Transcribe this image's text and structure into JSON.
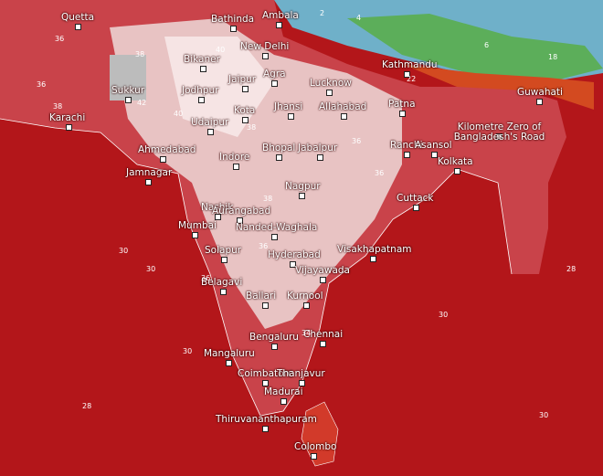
{
  "cities": [
    "Quetta",
    "Bathinda",
    "Ambala",
    "Sukkur",
    "Bikaner",
    "New Delhi",
    "Agra",
    "Lucknow",
    "Kathmandu",
    "Guwahati",
    "Jodhpur",
    "Jaipur",
    "Karachi",
    "Udaipur",
    "Kota",
    "Jhansi",
    "Allahabad",
    "Patna",
    "Kilometre Zero of Bangladesh's Road",
    "Ahmedabad",
    "Bhopal",
    "Jabalpur",
    "Ranchi",
    "Asansol",
    "Kolkata",
    "Indore",
    "Jamnagar",
    "Nagpur",
    "Cuttack",
    "Nashik",
    "Aurangabad",
    "Mumbai",
    "Nanded-Waghala",
    "Solapur",
    "Hyderabad",
    "Visakhapatnam",
    "Vijayawada",
    "Belagavi",
    "Ballari",
    "Kurnool",
    "Bengaluru",
    "Chennai",
    "Mangaluru",
    "Coimbatore",
    "Thanjavur",
    "Madurai",
    "Thiruvananthapuram",
    "Colombo"
  ],
  "contour_labels": [
    36,
    38,
    40,
    42,
    38,
    36,
    40,
    38,
    36,
    36,
    38,
    36,
    30,
    30,
    30,
    28,
    30,
    28,
    30,
    2,
    4,
    6,
    18,
    22,
    36,
    34
  ]
}
